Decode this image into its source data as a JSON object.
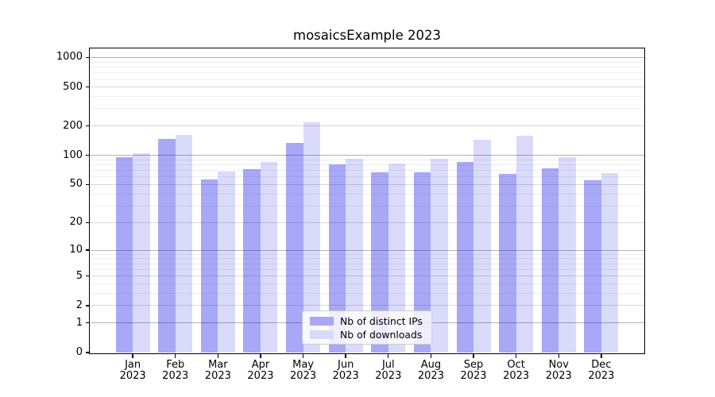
{
  "title": "mosaicsExample 2023",
  "chart_data": {
    "type": "bar",
    "title": "mosaicsExample 2023",
    "yscale": "symlog-like (position proportional to log10(1+v))",
    "ylim": [
      0,
      1225
    ],
    "grid": true,
    "legend_position": "lower center, inside plot",
    "y_ticks": [
      0,
      1,
      2,
      5,
      10,
      20,
      50,
      100,
      200,
      500,
      1000
    ],
    "categories": [
      "Jan 2023",
      "Feb 2023",
      "Mar 2023",
      "Apr 2023",
      "May 2023",
      "Jun 2023",
      "Jul 2023",
      "Aug 2023",
      "Sep 2023",
      "Oct 2023",
      "Nov 2023",
      "Dec 2023"
    ],
    "series": [
      {
        "name": "Nb of distinct IPs",
        "color": "#a9a9f2",
        "fill": "rgba(0,0,230,0.34)",
        "values": [
          95,
          147,
          57,
          72,
          135,
          81,
          67,
          67,
          86,
          65,
          74,
          55
        ]
      },
      {
        "name": "Nb of downloads",
        "color": "#d9d9f8",
        "fill": "rgba(0,0,230,0.145)",
        "values": [
          106,
          161,
          68,
          85,
          218,
          93,
          83,
          93,
          145,
          159,
          96,
          66
        ]
      }
    ]
  }
}
